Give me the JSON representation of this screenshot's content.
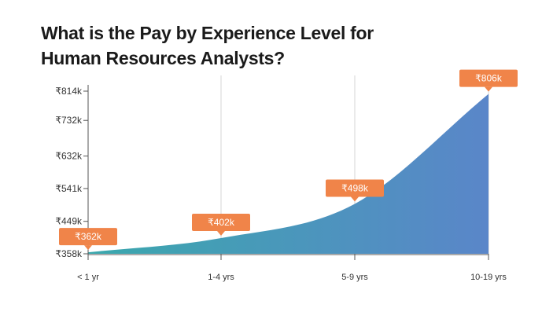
{
  "title_line1": "What is the Pay by Experience Level for",
  "title_line2": "Human Resources Analysts?",
  "colors": {
    "gradient_start": "#3aa8ad",
    "gradient_end": "#5a86c9",
    "label_bg": "#f08449",
    "grid": "#d6d6d6",
    "axis": "#555555"
  },
  "chart_data": {
    "type": "area",
    "title": "What is the Pay by Experience Level for Human Resources Analysts?",
    "categories": [
      "< 1 yr",
      "1-4 yrs",
      "5-9 yrs",
      "10-19 yrs"
    ],
    "series": [
      {
        "values": [
          362,
          402,
          498,
          806
        ],
        "labels": [
          "₹362k",
          "₹402k",
          "₹498k",
          "₹806k"
        ]
      }
    ],
    "y_ticks": [
      {
        "value": 358,
        "label": "₹358k"
      },
      {
        "value": 449,
        "label": "₹449k"
      },
      {
        "value": 541,
        "label": "₹541k"
      },
      {
        "value": 632,
        "label": "₹632k"
      },
      {
        "value": 732,
        "label": "₹732k"
      },
      {
        "value": 814,
        "label": "₹814k"
      }
    ],
    "ylim": [
      358,
      814
    ],
    "grid": "vertical",
    "xlabel": "",
    "ylabel": ""
  }
}
